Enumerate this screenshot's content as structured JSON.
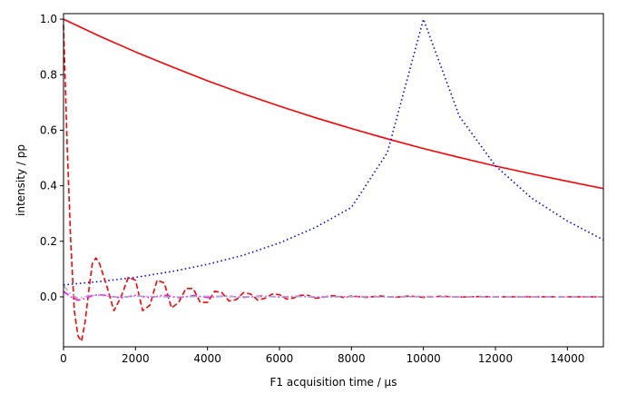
{
  "chart_data": {
    "type": "line",
    "title": "",
    "xlabel": "F1 acquisition time / µs",
    "ylabel": "intensity / pp",
    "xlim": [
      0,
      15000
    ],
    "ylim": [
      -0.18,
      1.02
    ],
    "grid": false,
    "legend": "none",
    "x_ticks": [
      0,
      2000,
      4000,
      6000,
      8000,
      10000,
      12000,
      14000
    ],
    "x_tick_labels": [
      "0",
      "2000",
      "4000",
      "6000",
      "8000",
      "10000",
      "12000",
      "14000"
    ],
    "y_ticks": [
      0.0,
      0.2,
      0.4,
      0.6,
      0.8,
      1.0
    ],
    "y_tick_labels": [
      "0.0",
      "0.2",
      "0.4",
      "0.6",
      "0.8",
      "1.0"
    ],
    "series": [
      {
        "style": "solid",
        "color": "#ff0000",
        "x": [
          0,
          1000,
          2000,
          3000,
          4000,
          5000,
          6000,
          7000,
          8000,
          9000,
          10000,
          11000,
          12000,
          13000,
          14000,
          15000
        ],
        "values": [
          1.0,
          0.939,
          0.882,
          0.829,
          0.778,
          0.731,
          0.687,
          0.645,
          0.606,
          0.569,
          0.534,
          0.502,
          0.471,
          0.443,
          0.416,
          0.39
        ]
      },
      {
        "style": "dotted",
        "color": "#0000ff",
        "x": [
          0,
          1000,
          2000,
          3000,
          4000,
          5000,
          6000,
          7000,
          8000,
          9000,
          10000,
          11000,
          12000,
          13000,
          14000,
          15000
        ],
        "values": [
          0.043,
          0.055,
          0.07,
          0.091,
          0.117,
          0.15,
          0.194,
          0.25,
          0.322,
          0.52,
          1.0,
          0.65,
          0.472,
          0.356,
          0.273,
          0.205
        ]
      },
      {
        "style": "dashed",
        "color": "#ff0000",
        "x": [
          0,
          100,
          200,
          300,
          400,
          500,
          600,
          700,
          800,
          900,
          1000,
          1200,
          1400,
          1600,
          1800,
          2000,
          2200,
          2400,
          2600,
          2800,
          3000,
          3200,
          3400,
          3600,
          3800,
          4000,
          4200,
          4400,
          4600,
          4800,
          5000,
          5200,
          5400,
          5600,
          5800,
          6000,
          6200,
          6400,
          6600,
          6800,
          7000,
          7200,
          7400,
          7600,
          7800,
          8000,
          8400,
          8800,
          9200,
          9600,
          10000,
          10500,
          11000,
          11500,
          12000,
          12500,
          13000,
          14000,
          15000
        ],
        "values": [
          0.98,
          0.55,
          0.2,
          -0.05,
          -0.14,
          -0.16,
          -0.09,
          0.02,
          0.12,
          0.14,
          0.12,
          0.04,
          -0.05,
          0.0,
          0.07,
          0.06,
          -0.05,
          -0.03,
          0.06,
          0.05,
          -0.04,
          -0.02,
          0.03,
          0.03,
          -0.02,
          -0.02,
          0.02,
          0.015,
          -0.015,
          -0.01,
          0.015,
          0.01,
          -0.012,
          -0.005,
          0.01,
          0.008,
          -0.008,
          -0.004,
          0.006,
          0.005,
          -0.005,
          -0.002,
          0.004,
          0.003,
          -0.003,
          0.003,
          -0.002,
          0.003,
          -0.002,
          0.003,
          -0.002,
          0.002,
          -0.001,
          0.001,
          0.0,
          0.0,
          0.0,
          0.0,
          0.0
        ]
      },
      {
        "style": "dashdot",
        "color": "#ff00ff",
        "x": [
          0,
          200,
          400,
          600,
          800,
          1000,
          1300,
          1600,
          2000,
          2400,
          2800,
          3200,
          3600,
          4000,
          4500,
          5000,
          5500,
          6000,
          6500,
          7000,
          8000,
          9000,
          10000,
          11000,
          12000,
          13000,
          14000,
          15000
        ],
        "values": [
          0.02,
          0.0,
          -0.012,
          -0.006,
          0.004,
          0.008,
          0.003,
          -0.004,
          0.005,
          -0.003,
          0.006,
          -0.003,
          0.004,
          -0.002,
          0.003,
          -0.002,
          0.003,
          -0.001,
          0.002,
          -0.001,
          0.001,
          0.0,
          0.001,
          0.0,
          0.0,
          0.0,
          0.0,
          0.0
        ]
      },
      {
        "style": "dashdot",
        "color": "#aaaacc",
        "x": [
          0,
          200,
          400,
          700,
          1000,
          1500,
          2000,
          3000,
          4000,
          5000,
          6000,
          8000,
          10000,
          12000,
          15000
        ],
        "values": [
          0.04,
          0.01,
          -0.005,
          0.004,
          0.006,
          -0.002,
          0.003,
          -0.001,
          0.002,
          0.0,
          0.001,
          0.0,
          0.0,
          0.0,
          0.0
        ]
      }
    ]
  }
}
